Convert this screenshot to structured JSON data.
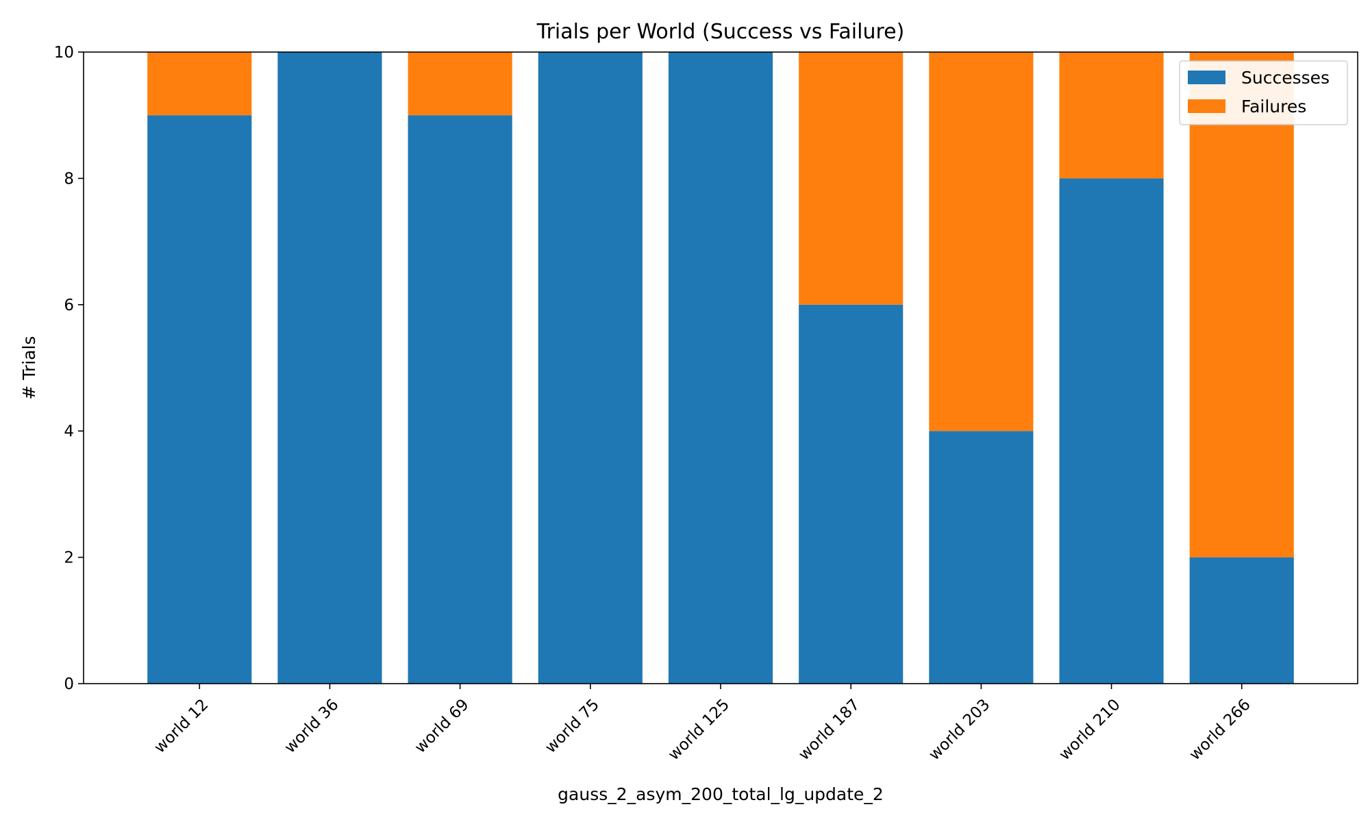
{
  "chart_data": {
    "type": "bar",
    "stacked": true,
    "title": "Trials per World (Success vs Failure)",
    "xlabel": "gauss_2_asym_200_total_lg_update_2",
    "ylabel": "# Trials",
    "ylim": [
      0,
      10
    ],
    "yticks": [
      0,
      2,
      4,
      6,
      8,
      10
    ],
    "categories": [
      "world 12",
      "world 36",
      "world 69",
      "world 75",
      "world 125",
      "world 187",
      "world 203",
      "world 210",
      "world 266"
    ],
    "series": [
      {
        "name": "Successes",
        "color": "#1f77b4",
        "values": [
          9,
          10,
          9,
          10,
          10,
          6,
          4,
          8,
          2
        ]
      },
      {
        "name": "Failures",
        "color": "#ff7f0e",
        "values": [
          1,
          0,
          1,
          0,
          0,
          4,
          6,
          2,
          8
        ]
      }
    ],
    "legend_position": "top-right",
    "grid": false
  }
}
